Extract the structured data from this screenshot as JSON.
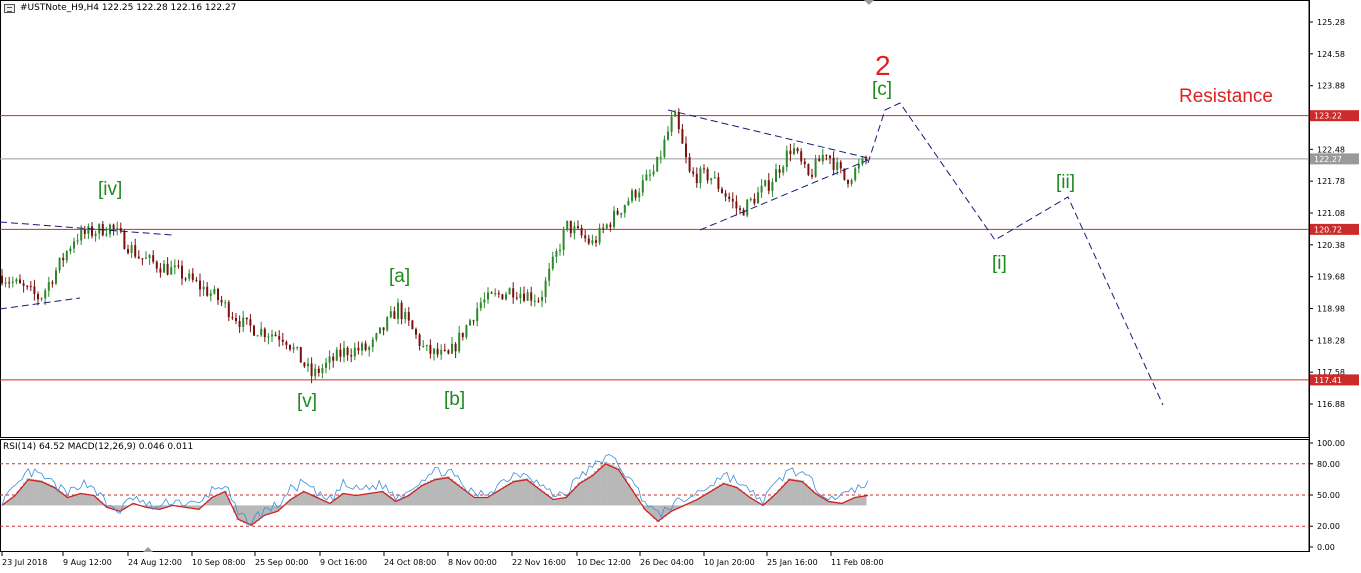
{
  "header": {
    "symbol_line": "#USTNote_H9,H4  122.25 122.28 122.16 122.27",
    "indicator_line": "RSI(14) 64.52 MACD(12,26,9) 0.046 0.011"
  },
  "colors": {
    "bull": "#2a8a2a",
    "bear": "#7a1010",
    "level_line": "#cc2b2b",
    "current_line": "#9a9a9a",
    "wave_label": "#1e8a1e",
    "red_label": "#dd2222",
    "trendline": "#1a1a7a",
    "rsi": "#3a8fdc",
    "macd_signal": "#cc2222",
    "macd_hist": "#b8b8b8"
  },
  "chart_data": [
    {
      "type": "candlestick",
      "title": "#USTNote_H9,H4",
      "y_ticks": [
        "125.28",
        "124.58",
        "123.88",
        "123.22",
        "122.48",
        "122.27",
        "121.78",
        "121.08",
        "120.72",
        "120.38",
        "119.68",
        "118.98",
        "118.28",
        "117.58",
        "117.41",
        "116.88"
      ],
      "x_ticks": [
        "23 Jul 2018",
        "9 Aug 12:00",
        "24 Aug 12:00",
        "10 Sep 08:00",
        "25 Sep 00:00",
        "9 Oct 16:00",
        "24 Oct 08:00",
        "8 Nov 00:00",
        "22 Nov 16:00",
        "10 Dec 12:00",
        "26 Dec 04:00",
        "10 Jan 20:00",
        "25 Jan 16:00",
        "11 Feb 08:00"
      ],
      "ylim": [
        116.5,
        125.55
      ],
      "horizontal_levels": [
        {
          "price": 123.22,
          "label": "123.22",
          "role": "level"
        },
        {
          "price": 122.27,
          "label": "122.27",
          "role": "current"
        },
        {
          "price": 120.72,
          "label": "120.72",
          "role": "level"
        },
        {
          "price": 117.41,
          "label": "117.41",
          "role": "level"
        }
      ],
      "price_path": [
        {
          "x": "23 Jul 2018",
          "y": 119.7
        },
        {
          "x": "2 Aug",
          "y": 119.2
        },
        {
          "x": "9 Aug 12:00",
          "y": 120.55
        },
        {
          "x": "16 Aug",
          "y": 120.78
        },
        {
          "x": "24 Aug 12:00",
          "y": 120.1
        },
        {
          "x": "3 Sep",
          "y": 119.75
        },
        {
          "x": "10 Sep 08:00",
          "y": 119.25
        },
        {
          "x": "17 Sep",
          "y": 118.6
        },
        {
          "x": "25 Sep 00:00",
          "y": 118.35
        },
        {
          "x": "28 Sep",
          "y": 117.5
        },
        {
          "x": "9 Oct 16:00",
          "y": 118.05
        },
        {
          "x": "16 Oct",
          "y": 118.1
        },
        {
          "x": "24 Oct 08:00",
          "y": 119.0
        },
        {
          "x": "1 Nov",
          "y": 118.05
        },
        {
          "x": "8 Nov 00:00",
          "y": 117.9
        },
        {
          "x": "15 Nov",
          "y": 119.1
        },
        {
          "x": "22 Nov 16:00",
          "y": 119.4
        },
        {
          "x": "30 Nov",
          "y": 119.2
        },
        {
          "x": "4 Dec",
          "y": 120.8
        },
        {
          "x": "10 Dec 12:00",
          "y": 120.4
        },
        {
          "x": "18 Dec",
          "y": 121.3
        },
        {
          "x": "26 Dec 04:00",
          "y": 122.0
        },
        {
          "x": "3 Jan",
          "y": 123.25
        },
        {
          "x": "8 Jan",
          "y": 121.9
        },
        {
          "x": "10 Jan 20:00",
          "y": 121.9
        },
        {
          "x": "17 Jan",
          "y": 121.1
        },
        {
          "x": "25 Jan 16:00",
          "y": 121.75
        },
        {
          "x": "30 Jan",
          "y": 122.55
        },
        {
          "x": "5 Feb",
          "y": 121.85
        },
        {
          "x": "8 Feb",
          "y": 122.45
        },
        {
          "x": "11 Feb 08:00",
          "y": 121.8
        },
        {
          "x": "15 Feb",
          "y": 122.27
        }
      ],
      "wave_labels": [
        {
          "text": "[iv]",
          "anchor": "9 Aug 12:00"
        },
        {
          "text": "[v]",
          "anchor": "25 Sep 00:00"
        },
        {
          "text": "[a]",
          "anchor": "24 Oct 08:00"
        },
        {
          "text": "[b]",
          "anchor": "8 Nov 00:00"
        },
        {
          "text": "[c]",
          "anchor": "projection"
        },
        {
          "text": "2",
          "anchor": "projection"
        },
        {
          "text": "[i]",
          "anchor": "projection"
        },
        {
          "text": "[ii]",
          "anchor": "projection"
        }
      ],
      "annotations": [
        "Resistance"
      ]
    },
    {
      "type": "line",
      "title": "RSI(14) 64.52 MACD(12,26,9) 0.046 0.011",
      "y_ticks": [
        "100.00",
        "80.00",
        "50.00",
        "20.00",
        "0.00"
      ],
      "ylim": [
        0,
        100
      ],
      "reference_levels": [
        80,
        50,
        20
      ],
      "series": [
        {
          "name": "RSI(14)",
          "values": [
            45,
            55,
            72,
            68,
            60,
            50,
            62,
            58,
            40,
            35,
            48,
            40,
            38,
            45,
            42,
            40,
            55,
            60,
            30,
            25,
            35,
            40,
            55,
            62,
            50,
            45,
            60,
            55,
            58,
            60,
            48,
            55,
            66,
            72,
            74,
            60,
            50,
            52,
            62,
            70,
            72,
            60,
            50,
            52,
            68,
            76,
            88,
            80,
            62,
            45,
            30,
            40,
            45,
            52,
            60,
            70,
            64,
            52,
            45,
            60,
            75,
            70,
            58,
            50,
            48,
            55,
            64
          ]
        },
        {
          "name": "MACD(12,26,9)",
          "values": [
            40,
            50,
            66,
            64,
            58,
            48,
            52,
            50,
            38,
            34,
            42,
            38,
            36,
            40,
            38,
            36,
            48,
            54,
            26,
            20,
            30,
            34,
            46,
            54,
            48,
            42,
            52,
            50,
            52,
            54,
            44,
            50,
            60,
            66,
            68,
            58,
            48,
            48,
            56,
            64,
            66,
            56,
            46,
            48,
            62,
            70,
            82,
            76,
            56,
            36,
            24,
            34,
            40,
            46,
            54,
            62,
            58,
            48,
            40,
            52,
            66,
            64,
            52,
            44,
            42,
            48,
            50
          ]
        }
      ]
    }
  ],
  "labels": {
    "resistance": "Resistance",
    "wave_c": "[c]",
    "wave_2": "2"
  }
}
